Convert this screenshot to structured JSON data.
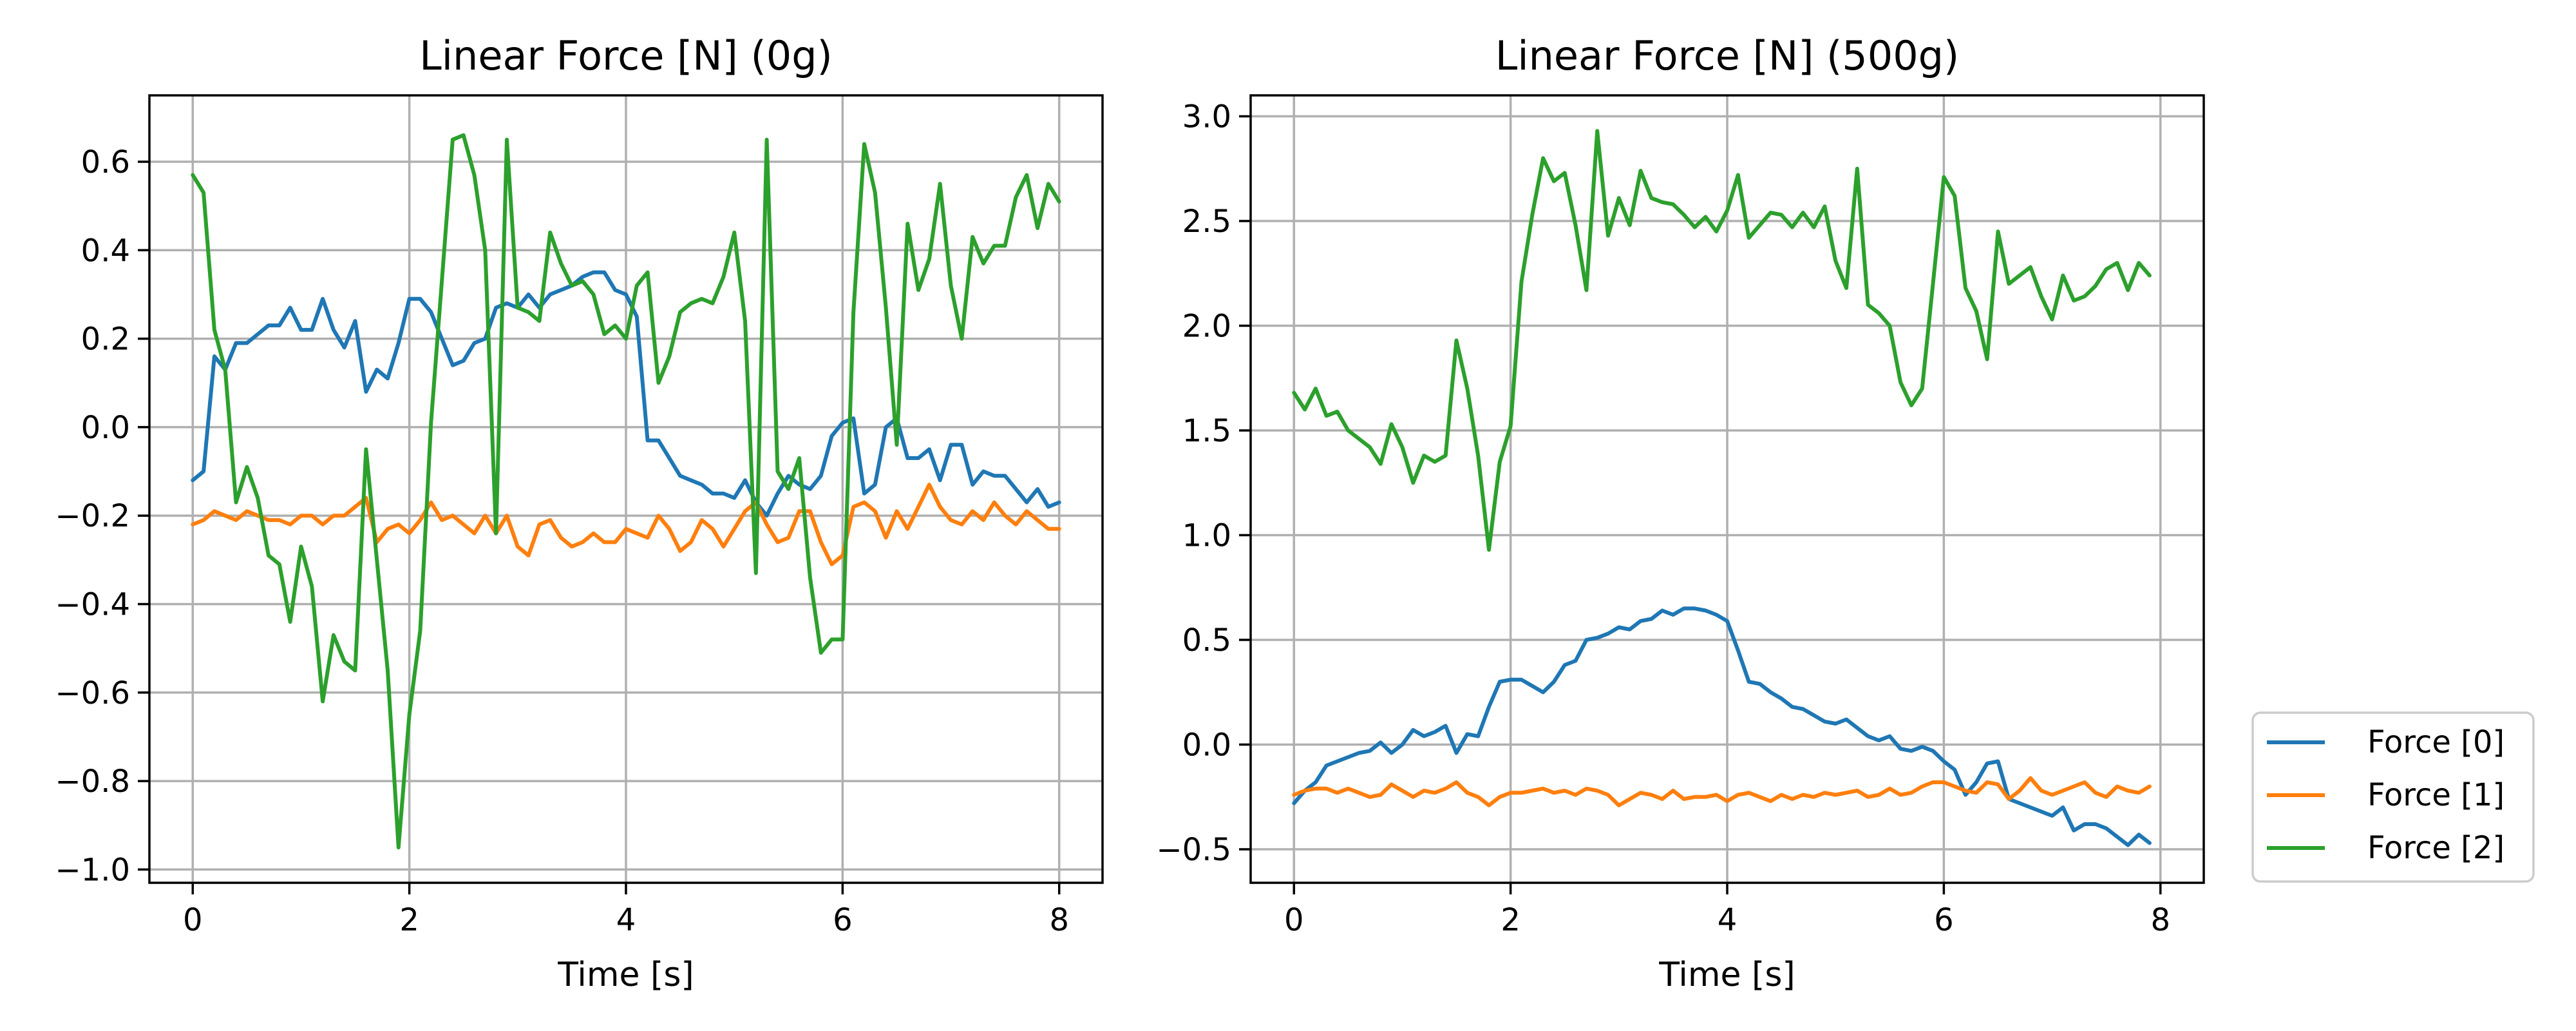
{
  "chart_data": [
    {
      "type": "line",
      "title": "Linear Force [N] (0g)",
      "xlabel": "Time [s]",
      "ylabel": "",
      "xlim": [
        -0.4,
        8.4
      ],
      "ylim": [
        -1.03,
        0.75
      ],
      "xticks": [
        0,
        2,
        4,
        6,
        8
      ],
      "yticks": [
        -1.0,
        -0.8,
        -0.6,
        -0.4,
        -0.2,
        0.0,
        0.2,
        0.4,
        0.6
      ],
      "ytick_labels": [
        "−1.0",
        "−0.8",
        "−0.6",
        "−0.4",
        "−0.2",
        "0.0",
        "0.2",
        "0.4",
        "0.6"
      ],
      "grid": true,
      "series": [
        {
          "name": "Force [0]",
          "color": "#1f77b4",
          "x": [
            0,
            0.1,
            0.2,
            0.3,
            0.4,
            0.5,
            0.6,
            0.7,
            0.8,
            0.9,
            1.0,
            1.1,
            1.2,
            1.3,
            1.4,
            1.5,
            1.6,
            1.7,
            1.8,
            1.9,
            2.0,
            2.1,
            2.2,
            2.3,
            2.4,
            2.5,
            2.6,
            2.7,
            2.8,
            2.9,
            3.0,
            3.1,
            3.2,
            3.3,
            3.4,
            3.5,
            3.6,
            3.7,
            3.8,
            3.9,
            4.0,
            4.1,
            4.2,
            4.3,
            4.4,
            4.5,
            4.6,
            4.7,
            4.8,
            4.9,
            5.0,
            5.1,
            5.2,
            5.3,
            5.4,
            5.5,
            5.6,
            5.7,
            5.8,
            5.9,
            6.0,
            6.1,
            6.2,
            6.3,
            6.4,
            6.5,
            6.6,
            6.7,
            6.8,
            6.9,
            7.0,
            7.1,
            7.2,
            7.3,
            7.4,
            7.5,
            7.6,
            7.7,
            7.8,
            7.9,
            8.0
          ],
          "y": [
            -0.12,
            -0.1,
            0.16,
            0.13,
            0.19,
            0.19,
            0.21,
            0.23,
            0.23,
            0.27,
            0.22,
            0.22,
            0.29,
            0.22,
            0.18,
            0.24,
            0.08,
            0.13,
            0.11,
            0.19,
            0.29,
            0.29,
            0.26,
            0.2,
            0.14,
            0.15,
            0.19,
            0.2,
            0.27,
            0.28,
            0.27,
            0.3,
            0.27,
            0.3,
            0.31,
            0.32,
            0.34,
            0.35,
            0.35,
            0.31,
            0.3,
            0.25,
            -0.03,
            -0.03,
            -0.07,
            -0.11,
            -0.12,
            -0.13,
            -0.15,
            -0.15,
            -0.16,
            -0.12,
            -0.17,
            -0.2,
            -0.15,
            -0.11,
            -0.13,
            -0.14,
            -0.11,
            -0.02,
            0.01,
            0.02,
            -0.15,
            -0.13,
            0.0,
            0.02,
            -0.07,
            -0.07,
            -0.05,
            -0.12,
            -0.04,
            -0.04,
            -0.13,
            -0.1,
            -0.11,
            -0.11,
            -0.14,
            -0.17,
            -0.14,
            -0.18,
            -0.17
          ]
        },
        {
          "name": "Force [1]",
          "color": "#ff7f0e",
          "x": [
            0,
            0.1,
            0.2,
            0.3,
            0.4,
            0.5,
            0.6,
            0.7,
            0.8,
            0.9,
            1.0,
            1.1,
            1.2,
            1.3,
            1.4,
            1.5,
            1.6,
            1.7,
            1.8,
            1.9,
            2.0,
            2.1,
            2.2,
            2.3,
            2.4,
            2.5,
            2.6,
            2.7,
            2.8,
            2.9,
            3.0,
            3.1,
            3.2,
            3.3,
            3.4,
            3.5,
            3.6,
            3.7,
            3.8,
            3.9,
            4.0,
            4.1,
            4.2,
            4.3,
            4.4,
            4.5,
            4.6,
            4.7,
            4.8,
            4.9,
            5.0,
            5.1,
            5.2,
            5.3,
            5.4,
            5.5,
            5.6,
            5.7,
            5.8,
            5.9,
            6.0,
            6.1,
            6.2,
            6.3,
            6.4,
            6.5,
            6.6,
            6.7,
            6.8,
            6.9,
            7.0,
            7.1,
            7.2,
            7.3,
            7.4,
            7.5,
            7.6,
            7.7,
            7.8,
            7.9,
            8.0
          ],
          "y": [
            -0.22,
            -0.21,
            -0.19,
            -0.2,
            -0.21,
            -0.19,
            -0.2,
            -0.21,
            -0.21,
            -0.22,
            -0.2,
            -0.2,
            -0.22,
            -0.2,
            -0.2,
            -0.18,
            -0.16,
            -0.26,
            -0.23,
            -0.22,
            -0.24,
            -0.21,
            -0.17,
            -0.21,
            -0.2,
            -0.22,
            -0.24,
            -0.2,
            -0.24,
            -0.2,
            -0.27,
            -0.29,
            -0.22,
            -0.21,
            -0.25,
            -0.27,
            -0.26,
            -0.24,
            -0.26,
            -0.26,
            -0.23,
            -0.24,
            -0.25,
            -0.2,
            -0.23,
            -0.28,
            -0.26,
            -0.21,
            -0.23,
            -0.27,
            -0.23,
            -0.19,
            -0.17,
            -0.22,
            -0.26,
            -0.25,
            -0.19,
            -0.19,
            -0.26,
            -0.31,
            -0.29,
            -0.18,
            -0.17,
            -0.19,
            -0.25,
            -0.19,
            -0.23,
            -0.18,
            -0.13,
            -0.18,
            -0.21,
            -0.22,
            -0.19,
            -0.21,
            -0.17,
            -0.2,
            -0.22,
            -0.19,
            -0.21,
            -0.23,
            -0.23
          ]
        },
        {
          "name": "Force [2]",
          "color": "#2ca02c",
          "x": [
            0,
            0.1,
            0.2,
            0.3,
            0.4,
            0.5,
            0.6,
            0.7,
            0.8,
            0.9,
            1.0,
            1.1,
            1.2,
            1.3,
            1.4,
            1.5,
            1.6,
            1.7,
            1.8,
            1.9,
            2.0,
            2.1,
            2.2,
            2.3,
            2.4,
            2.5,
            2.6,
            2.7,
            2.8,
            2.9,
            3.0,
            3.1,
            3.2,
            3.3,
            3.4,
            3.5,
            3.6,
            3.7,
            3.8,
            3.9,
            4.0,
            4.1,
            4.2,
            4.3,
            4.4,
            4.5,
            4.6,
            4.7,
            4.8,
            4.9,
            5.0,
            5.1,
            5.2,
            5.3,
            5.4,
            5.5,
            5.6,
            5.7,
            5.8,
            5.9,
            6.0,
            6.1,
            6.2,
            6.3,
            6.4,
            6.5,
            6.6,
            6.7,
            6.8,
            6.9,
            7.0,
            7.1,
            7.2,
            7.3,
            7.4,
            7.5,
            7.6,
            7.7,
            7.8,
            7.9,
            8.0
          ],
          "y": [
            0.57,
            0.53,
            0.22,
            0.13,
            -0.17,
            -0.09,
            -0.16,
            -0.29,
            -0.31,
            -0.44,
            -0.27,
            -0.36,
            -0.62,
            -0.47,
            -0.53,
            -0.55,
            -0.05,
            -0.3,
            -0.55,
            -0.95,
            -0.65,
            -0.46,
            0.01,
            0.33,
            0.65,
            0.66,
            0.57,
            0.4,
            -0.24,
            0.65,
            0.27,
            0.26,
            0.24,
            0.44,
            0.37,
            0.32,
            0.33,
            0.3,
            0.21,
            0.23,
            0.2,
            0.32,
            0.35,
            0.1,
            0.16,
            0.26,
            0.28,
            0.29,
            0.28,
            0.34,
            0.44,
            0.24,
            -0.33,
            0.65,
            -0.1,
            -0.14,
            -0.07,
            -0.34,
            -0.51,
            -0.48,
            -0.48,
            0.26,
            0.64,
            0.53,
            0.27,
            -0.04,
            0.46,
            0.31,
            0.38,
            0.55,
            0.32,
            0.2,
            0.43,
            0.37,
            0.41,
            0.41,
            0.52,
            0.57,
            0.45,
            0.55,
            0.51
          ]
        }
      ]
    },
    {
      "type": "line",
      "title": "Linear Force [N] (500g)",
      "xlabel": "Time [s]",
      "ylabel": "",
      "xlim": [
        -0.4,
        8.4
      ],
      "ylim": [
        -0.66,
        3.1
      ],
      "xticks": [
        0,
        2,
        4,
        6,
        8
      ],
      "yticks": [
        -0.5,
        0.0,
        0.5,
        1.0,
        1.5,
        2.0,
        2.5,
        3.0
      ],
      "ytick_labels": [
        "−0.5",
        "0.0",
        "0.5",
        "1.0",
        "1.5",
        "2.0",
        "2.5",
        "3.0"
      ],
      "grid": true,
      "series": [
        {
          "name": "Force [0]",
          "color": "#1f77b4",
          "x": [
            0,
            0.1,
            0.2,
            0.3,
            0.4,
            0.5,
            0.6,
            0.7,
            0.8,
            0.9,
            1.0,
            1.1,
            1.2,
            1.3,
            1.4,
            1.5,
            1.6,
            1.7,
            1.8,
            1.9,
            2.0,
            2.1,
            2.2,
            2.3,
            2.4,
            2.5,
            2.6,
            2.7,
            2.8,
            2.9,
            3.0,
            3.1,
            3.2,
            3.3,
            3.4,
            3.5,
            3.6,
            3.7,
            3.8,
            3.9,
            4.0,
            4.1,
            4.2,
            4.3,
            4.4,
            4.5,
            4.6,
            4.7,
            4.8,
            4.9,
            5.0,
            5.1,
            5.2,
            5.3,
            5.4,
            5.5,
            5.6,
            5.7,
            5.8,
            5.9,
            6.0,
            6.1,
            6.2,
            6.3,
            6.4,
            6.5,
            6.6,
            6.7,
            6.8,
            6.9,
            7.0,
            7.1,
            7.2,
            7.3,
            7.4,
            7.5,
            7.6,
            7.7,
            7.8,
            7.9
          ],
          "y": [
            -0.28,
            -0.22,
            -0.18,
            -0.1,
            -0.08,
            -0.06,
            -0.04,
            -0.03,
            0.01,
            -0.04,
            0.0,
            0.07,
            0.04,
            0.06,
            0.09,
            -0.04,
            0.05,
            0.04,
            0.18,
            0.3,
            0.31,
            0.31,
            0.28,
            0.25,
            0.3,
            0.38,
            0.4,
            0.5,
            0.51,
            0.53,
            0.56,
            0.55,
            0.59,
            0.6,
            0.64,
            0.62,
            0.65,
            0.65,
            0.64,
            0.62,
            0.59,
            0.45,
            0.3,
            0.29,
            0.25,
            0.22,
            0.18,
            0.17,
            0.14,
            0.11,
            0.1,
            0.12,
            0.08,
            0.04,
            0.02,
            0.04,
            -0.02,
            -0.03,
            -0.01,
            -0.03,
            -0.08,
            -0.12,
            -0.24,
            -0.18,
            -0.09,
            -0.08,
            -0.26,
            -0.28,
            -0.3,
            -0.32,
            -0.34,
            -0.3,
            -0.41,
            -0.38,
            -0.38,
            -0.4,
            -0.44,
            -0.48,
            -0.43,
            -0.47
          ]
        },
        {
          "name": "Force [1]",
          "color": "#ff7f0e",
          "x": [
            0,
            0.1,
            0.2,
            0.3,
            0.4,
            0.5,
            0.6,
            0.7,
            0.8,
            0.9,
            1.0,
            1.1,
            1.2,
            1.3,
            1.4,
            1.5,
            1.6,
            1.7,
            1.8,
            1.9,
            2.0,
            2.1,
            2.2,
            2.3,
            2.4,
            2.5,
            2.6,
            2.7,
            2.8,
            2.9,
            3.0,
            3.1,
            3.2,
            3.3,
            3.4,
            3.5,
            3.6,
            3.7,
            3.8,
            3.9,
            4.0,
            4.1,
            4.2,
            4.3,
            4.4,
            4.5,
            4.6,
            4.7,
            4.8,
            4.9,
            5.0,
            5.1,
            5.2,
            5.3,
            5.4,
            5.5,
            5.6,
            5.7,
            5.8,
            5.9,
            6.0,
            6.1,
            6.2,
            6.3,
            6.4,
            6.5,
            6.6,
            6.7,
            6.8,
            6.9,
            7.0,
            7.1,
            7.2,
            7.3,
            7.4,
            7.5,
            7.6,
            7.7,
            7.8,
            7.9
          ],
          "y": [
            -0.24,
            -0.22,
            -0.21,
            -0.21,
            -0.23,
            -0.21,
            -0.23,
            -0.25,
            -0.24,
            -0.19,
            -0.22,
            -0.25,
            -0.22,
            -0.23,
            -0.21,
            -0.18,
            -0.23,
            -0.25,
            -0.29,
            -0.25,
            -0.23,
            -0.23,
            -0.22,
            -0.21,
            -0.23,
            -0.22,
            -0.24,
            -0.21,
            -0.22,
            -0.24,
            -0.29,
            -0.26,
            -0.23,
            -0.24,
            -0.26,
            -0.22,
            -0.26,
            -0.25,
            -0.25,
            -0.24,
            -0.27,
            -0.24,
            -0.23,
            -0.25,
            -0.27,
            -0.24,
            -0.26,
            -0.24,
            -0.25,
            -0.23,
            -0.24,
            -0.23,
            -0.22,
            -0.25,
            -0.24,
            -0.21,
            -0.24,
            -0.23,
            -0.2,
            -0.18,
            -0.18,
            -0.2,
            -0.22,
            -0.23,
            -0.18,
            -0.19,
            -0.26,
            -0.22,
            -0.16,
            -0.22,
            -0.24,
            -0.22,
            -0.2,
            -0.18,
            -0.23,
            -0.25,
            -0.2,
            -0.22,
            -0.23,
            -0.2
          ]
        },
        {
          "name": "Force [2]",
          "color": "#2ca02c",
          "x": [
            0,
            0.1,
            0.2,
            0.3,
            0.4,
            0.5,
            0.6,
            0.7,
            0.8,
            0.9,
            1.0,
            1.1,
            1.2,
            1.3,
            1.4,
            1.5,
            1.6,
            1.7,
            1.8,
            1.9,
            2.0,
            2.1,
            2.2,
            2.3,
            2.4,
            2.5,
            2.6,
            2.7,
            2.8,
            2.9,
            3.0,
            3.1,
            3.2,
            3.3,
            3.4,
            3.5,
            3.6,
            3.7,
            3.8,
            3.9,
            4.0,
            4.1,
            4.2,
            4.3,
            4.4,
            4.5,
            4.6,
            4.7,
            4.8,
            4.9,
            5.0,
            5.1,
            5.2,
            5.3,
            5.4,
            5.5,
            5.6,
            5.7,
            5.8,
            5.9,
            6.0,
            6.1,
            6.2,
            6.3,
            6.4,
            6.5,
            6.6,
            6.7,
            6.8,
            6.9,
            7.0,
            7.1,
            7.2,
            7.3,
            7.4,
            7.5,
            7.6,
            7.7,
            7.8,
            7.9
          ],
          "y": [
            1.68,
            1.6,
            1.7,
            1.57,
            1.59,
            1.5,
            1.46,
            1.42,
            1.34,
            1.53,
            1.42,
            1.25,
            1.38,
            1.35,
            1.38,
            1.93,
            1.7,
            1.38,
            0.93,
            1.35,
            1.52,
            2.21,
            2.53,
            2.8,
            2.69,
            2.73,
            2.48,
            2.17,
            2.93,
            2.43,
            2.61,
            2.48,
            2.74,
            2.61,
            2.59,
            2.58,
            2.53,
            2.47,
            2.52,
            2.45,
            2.55,
            2.72,
            2.42,
            2.48,
            2.54,
            2.53,
            2.47,
            2.54,
            2.47,
            2.57,
            2.31,
            2.18,
            2.75,
            2.1,
            2.06,
            2.0,
            1.73,
            1.62,
            1.7,
            2.2,
            2.71,
            2.62,
            2.18,
            2.07,
            1.84,
            2.45,
            2.2,
            2.24,
            2.28,
            2.14,
            2.03,
            2.24,
            2.12,
            2.14,
            2.19,
            2.27,
            2.3,
            2.17,
            2.3,
            2.24
          ]
        }
      ]
    }
  ],
  "legend": {
    "placement": "lower-right, outside plots",
    "entries": [
      "Force [0]",
      "Force [1]",
      "Force [2]"
    ],
    "colors": [
      "#1f77b4",
      "#ff7f0e",
      "#2ca02c"
    ]
  }
}
